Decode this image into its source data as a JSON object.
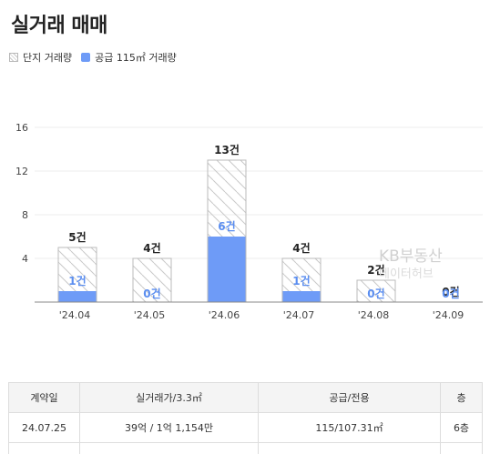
{
  "page": {
    "title": "실거래 매매"
  },
  "legend": [
    {
      "label": "단지 거래량",
      "style": "hatch"
    },
    {
      "label": "공급 115㎡ 거래량",
      "style": "fill",
      "color": "#6e9bf7"
    }
  ],
  "watermark": {
    "line1": "KB부동산",
    "line2": "데이터허브"
  },
  "chart_data": {
    "type": "bar",
    "categories": [
      "'24.04",
      "'24.05",
      "'24.06",
      "'24.07",
      "'24.08",
      "'24.09"
    ],
    "series": [
      {
        "name": "단지 거래량",
        "values": [
          5,
          4,
          13,
          4,
          2,
          0
        ],
        "labels": [
          "5건",
          "4건",
          "13건",
          "4건",
          "2건",
          "0건"
        ]
      },
      {
        "name": "공급 115㎡ 거래량",
        "values": [
          1,
          0,
          6,
          1,
          0,
          0
        ],
        "labels": [
          "1건",
          "0건",
          "6건",
          "1건",
          "0건",
          "0건"
        ]
      }
    ],
    "yticks": [
      4,
      8,
      12,
      16
    ],
    "ylim": [
      0,
      16
    ],
    "grid": true,
    "colors": {
      "total_border": "#bbbbbb",
      "supply_fill": "#6e9bf7",
      "supply_label": "#5b8ef0"
    }
  },
  "table": {
    "headers": [
      "계약일",
      "실거래가/3.3㎡",
      "공급/전용",
      "층"
    ],
    "rows": [
      [
        "24.07.25",
        "39억 / 1억 1,154만",
        "115/107.31㎡",
        "6층"
      ]
    ]
  }
}
